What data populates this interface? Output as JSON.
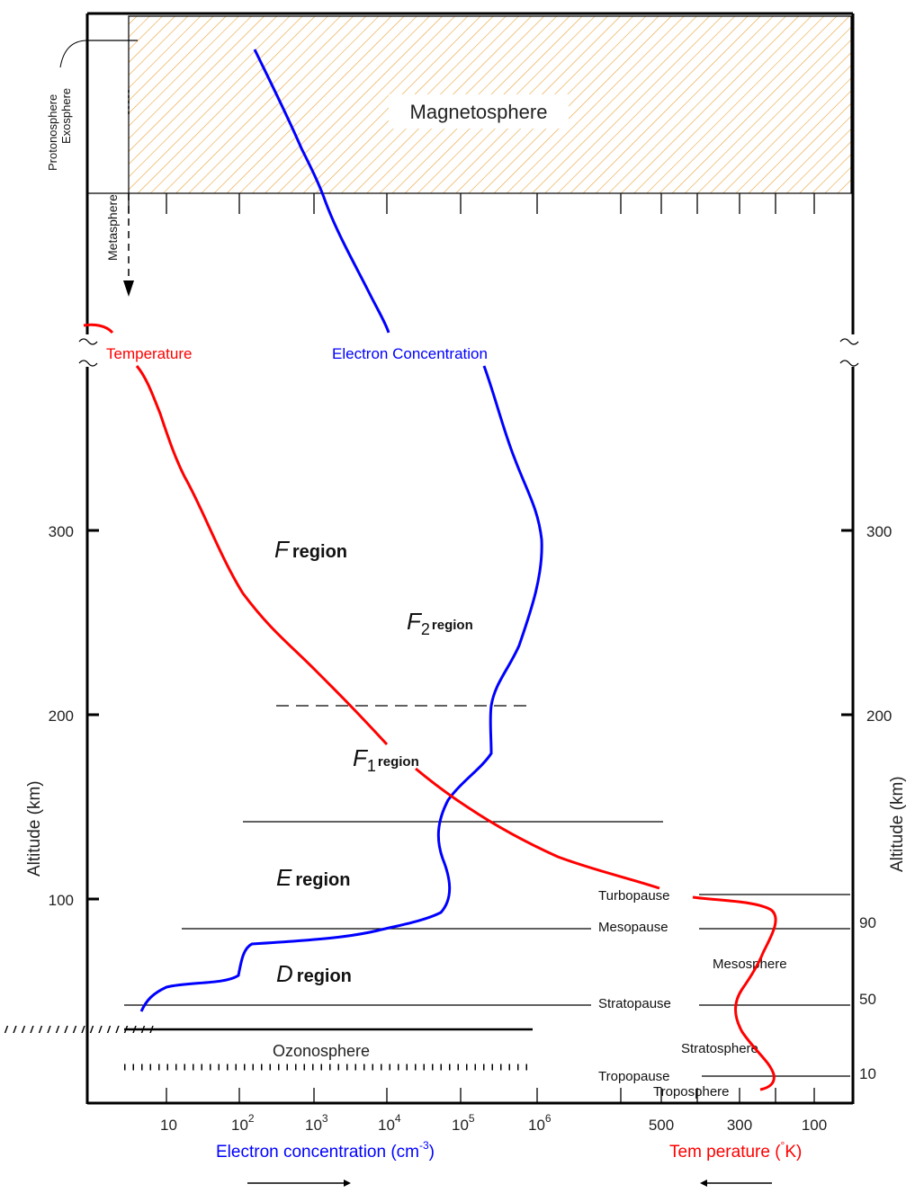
{
  "diagram": {
    "regions": {
      "magnetosphere": "Magnetosphere",
      "f_region": {
        "letter": "F",
        "word": "region"
      },
      "f2_region": {
        "letter": "F",
        "sub": "2",
        "word": "region"
      },
      "f1_region": {
        "letter": "F",
        "sub": "1",
        "word": "region"
      },
      "e_region": {
        "letter": "E",
        "word": "region"
      },
      "d_region": {
        "letter": "D",
        "word": "region"
      },
      "ozonosphere": "Ozonosphere"
    },
    "side_labels": {
      "protonosphere": "Protonosphere",
      "exosphere": "Exosphere",
      "metasphere": "Metasphere"
    },
    "curve_labels": {
      "temperature": "Temperature",
      "electron": "Electron Concentration"
    },
    "atmosphere_labels": {
      "turbopause": "Turbopause",
      "mesopause": "Mesopause",
      "mesosphere": "Mesosphere",
      "stratopause": "Stratopause",
      "stratosphere": "Stratosphere",
      "tropopause": "Tropopause",
      "troposphere": "Troposphere"
    },
    "left_axis": {
      "label": "Altitude (km)",
      "ticks": [
        "100",
        "200",
        "300"
      ]
    },
    "right_axis": {
      "label": "Altitude (km)",
      "ticks": [
        "10",
        "50",
        "90",
        "200",
        "300"
      ]
    },
    "bottom_electron": {
      "label": "Electron concentration (cm",
      "label_sup": "-3",
      "label_end": ")",
      "ticks": [
        {
          "base": "10",
          "exp": ""
        },
        {
          "base": "10",
          "exp": "2"
        },
        {
          "base": "10",
          "exp": "3"
        },
        {
          "base": "10",
          "exp": "4"
        },
        {
          "base": "10",
          "exp": "5"
        },
        {
          "base": "10",
          "exp": "6"
        }
      ]
    },
    "bottom_temperature": {
      "label": "Tem perature (",
      "label_sup": "°",
      "label_end": "K)",
      "ticks": [
        "500",
        "300",
        "100"
      ]
    },
    "colors": {
      "temperature": "#ff0000",
      "electron": "#0000ff",
      "magnetosphere": "#e8a33c"
    }
  }
}
